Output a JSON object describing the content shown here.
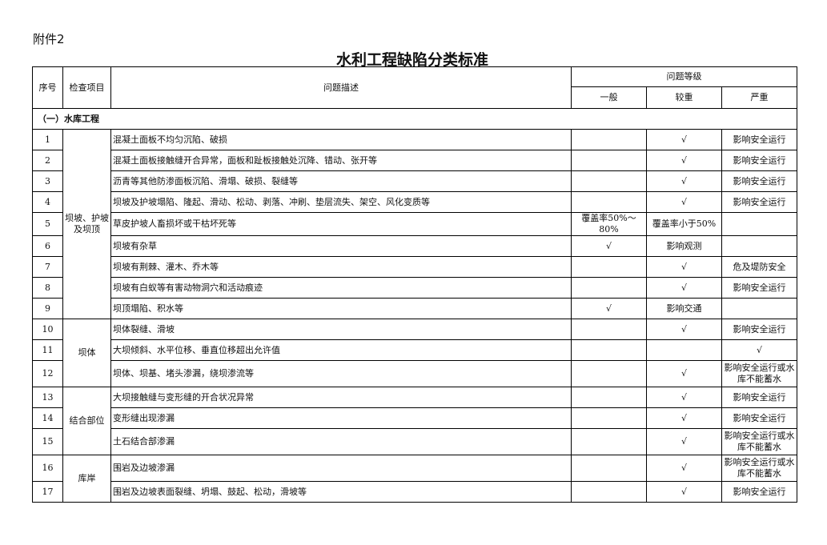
{
  "attachment": "附件2",
  "title": "水利工程缺陷分类标准",
  "headers": {
    "no": "序号",
    "item": "检查项目",
    "desc": "问题描述",
    "level": "问题等级",
    "general": "一般",
    "moderate": "较重",
    "severe": "严重"
  },
  "section": "（一）水库工程",
  "groups": [
    {
      "name": "坝坡、护坡及坝顶",
      "rows": 9
    },
    {
      "name": "坝体",
      "rows": 3
    },
    {
      "name": "结合部位",
      "rows": 3
    },
    {
      "name": "库岸",
      "rows": 2
    }
  ],
  "rows": [
    {
      "no": "1",
      "desc": "混凝土面板不均匀沉陷、破损",
      "general": "",
      "moderate": "√",
      "severe": "影响安全运行"
    },
    {
      "no": "2",
      "desc": "混凝土面板接触缝开合异常，面板和趾板接触处沉降、错动、张开等",
      "general": "",
      "moderate": "√",
      "severe": "影响安全运行"
    },
    {
      "no": "3",
      "desc": "沥青等其他防渗面板沉陷、滑塌、破损、裂缝等",
      "general": "",
      "moderate": "√",
      "severe": "影响安全运行"
    },
    {
      "no": "4",
      "desc": "坝坡及护坡塌陷、隆起、滑动、松动、剥落、冲刷、垫层流失、架空、风化变质等",
      "general": "",
      "moderate": "√",
      "severe": "影响安全运行"
    },
    {
      "no": "5",
      "desc": "草皮护坡人畜损坏或干枯坏死等",
      "general": "覆盖率50%～80%",
      "moderate": "覆盖率小于50%",
      "severe": ""
    },
    {
      "no": "6",
      "desc": "坝坡有杂草",
      "general": "√",
      "moderate": "影响观测",
      "severe": ""
    },
    {
      "no": "7",
      "desc": "坝坡有荆棘、灌木、乔木等",
      "general": "",
      "moderate": "√",
      "severe": "危及堤防安全"
    },
    {
      "no": "8",
      "desc": "坝坡有白蚁等有害动物洞穴和活动痕迹",
      "general": "",
      "moderate": "√",
      "severe": "影响安全运行"
    },
    {
      "no": "9",
      "desc": "坝顶塌陷、积水等",
      "general": "√",
      "moderate": "影响交通",
      "severe": ""
    },
    {
      "no": "10",
      "desc": "坝体裂缝、滑坡",
      "general": "",
      "moderate": "√",
      "severe": "影响安全运行"
    },
    {
      "no": "11",
      "desc": "大坝倾斜、水平位移、垂直位移超出允许值",
      "general": "",
      "moderate": "",
      "severe": "√"
    },
    {
      "no": "12",
      "desc": "坝体、坝基、堵头渗漏，绕坝渗流等",
      "general": "",
      "moderate": "√",
      "severe": "影响安全运行或水库不能蓄水"
    },
    {
      "no": "13",
      "desc": "大坝接触缝与变形缝的开合状况异常",
      "general": "",
      "moderate": "√",
      "severe": "影响安全运行"
    },
    {
      "no": "14",
      "desc": "变形缝出现渗漏",
      "general": "",
      "moderate": "√",
      "severe": "影响安全运行"
    },
    {
      "no": "15",
      "desc": "土石结合部渗漏",
      "general": "",
      "moderate": "√",
      "severe": "影响安全运行或水库不能蓄水"
    },
    {
      "no": "16",
      "desc": "围岩及边坡渗漏",
      "general": "",
      "moderate": "√",
      "severe": "影响安全运行或水库不能蓄水"
    },
    {
      "no": "17",
      "desc": "围岩及边坡表面裂缝、坍塌、鼓起、松动，滑坡等",
      "general": "",
      "moderate": "√",
      "severe": "影响安全运行"
    }
  ]
}
